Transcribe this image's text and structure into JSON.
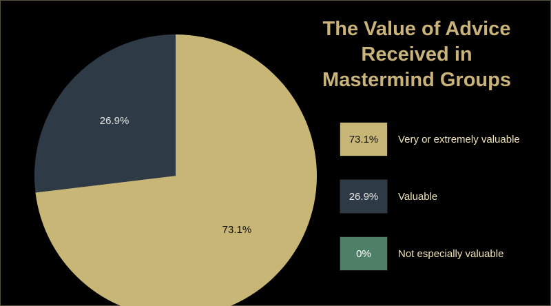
{
  "chart_data": {
    "type": "pie",
    "title_lines": [
      "The Value of Advice",
      "Received in",
      "Mastermind Groups"
    ],
    "slices": [
      {
        "label": "Very or extremely valuable",
        "value": 73.1,
        "display": "73.1%",
        "color": "#c8b677",
        "text_color": "#111111"
      },
      {
        "label": "Valuable",
        "value": 26.9,
        "display": "26.9%",
        "color": "#2e3b47",
        "text_color": "#e6e6e6"
      },
      {
        "label": "Not especially valuable",
        "value": 0,
        "display": "0%",
        "color": "#4e8068",
        "text_color": "#ffffff"
      }
    ],
    "legend_position": "right"
  },
  "colors": {
    "background": "#000000",
    "title": "#c9b37a",
    "legend_text": "#f0e2b8"
  }
}
